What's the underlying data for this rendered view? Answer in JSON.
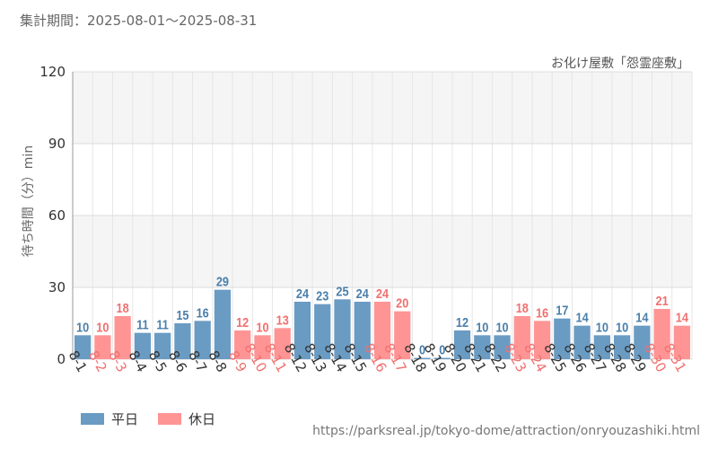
{
  "period_label": "集計期間：2025-08-01～2025-08-31",
  "subtitle": "お化け屋敷「怨霊座敷」",
  "source_url": "https://parksreal.jp/tokyo-dome/attraction/onryouzashiki.html",
  "colors": {
    "weekday": "#6a9bc3",
    "holiday": "#ff9494",
    "weekday_text": "#4a7fab",
    "holiday_text": "#f07070"
  },
  "legend": [
    {
      "label": "平日",
      "key": "weekday"
    },
    {
      "label": "休日",
      "key": "holiday"
    }
  ],
  "chart_data": {
    "type": "bar",
    "title": "お化け屋敷「怨霊座敷」",
    "xlabel": "",
    "ylabel": "待ち時間（分）min",
    "ylim": [
      0,
      120
    ],
    "yticks": [
      "0",
      "30",
      "60",
      "90",
      "120"
    ],
    "categories": [
      "8-1",
      "8-2",
      "8-3",
      "8-4",
      "8-5",
      "8-6",
      "8-7",
      "8-8",
      "8-9",
      "8-10",
      "8-11",
      "8-12",
      "8-13",
      "8-14",
      "8-15",
      "8-16",
      "8-17",
      "8-18",
      "8-19",
      "8-20",
      "8-21",
      "8-22",
      "8-23",
      "8-24",
      "8-25",
      "8-26",
      "8-27",
      "8-28",
      "8-29",
      "8-30",
      "8-31"
    ],
    "values": [
      10,
      10,
      18,
      11,
      11,
      15,
      16,
      29,
      12,
      10,
      13,
      24,
      23,
      25,
      24,
      24,
      20,
      0,
      0,
      12,
      10,
      10,
      18,
      16,
      17,
      14,
      10,
      10,
      14,
      21,
      14
    ],
    "day_type": [
      "weekday",
      "holiday",
      "holiday",
      "weekday",
      "weekday",
      "weekday",
      "weekday",
      "weekday",
      "holiday",
      "holiday",
      "holiday",
      "weekday",
      "weekday",
      "weekday",
      "weekday",
      "holiday",
      "holiday",
      "weekday",
      "weekday",
      "weekday",
      "weekday",
      "weekday",
      "holiday",
      "holiday",
      "weekday",
      "weekday",
      "weekday",
      "weekday",
      "weekday",
      "holiday",
      "holiday"
    ]
  }
}
